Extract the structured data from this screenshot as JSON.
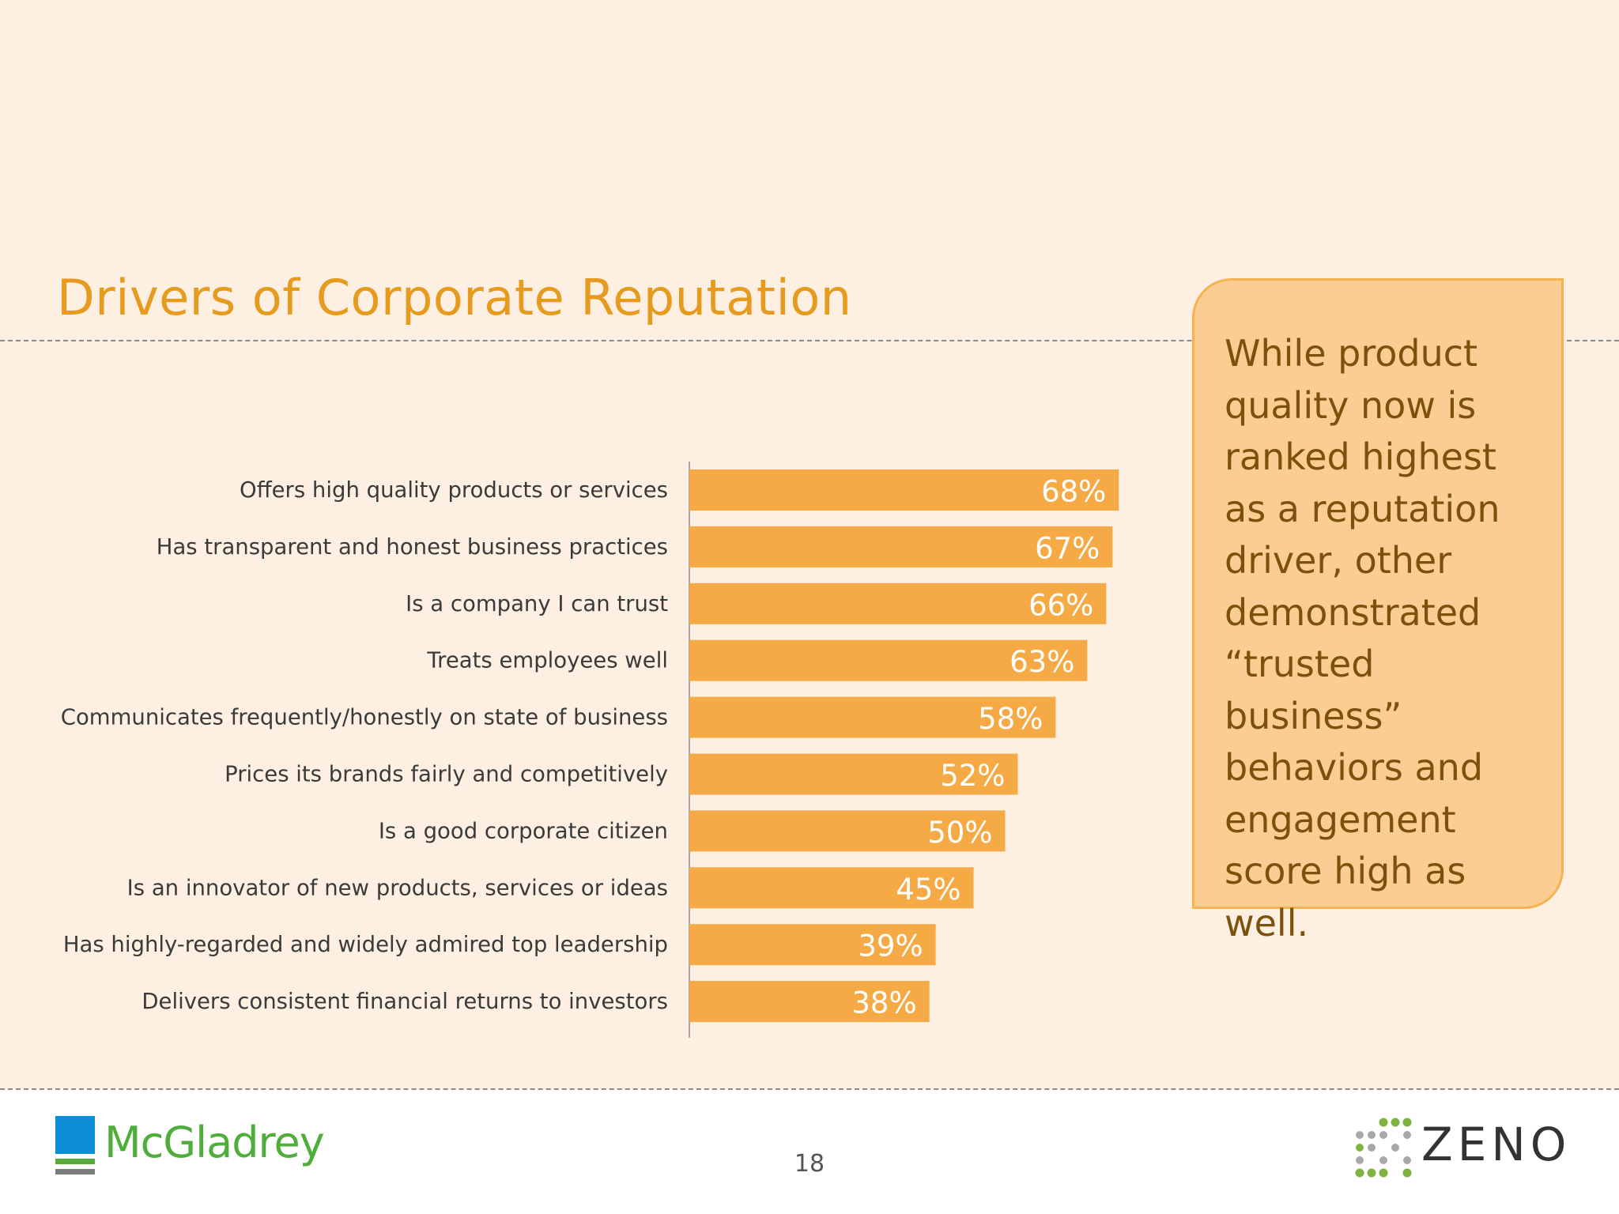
{
  "slide": {
    "title": "Drivers of Corporate Reputation",
    "page_number": "18",
    "callout_text": "While product quality now is ranked highest as a reputation driver, other demonstrated “trusted business” behaviors and engagement score high as well.",
    "colors": {
      "title": "#e69a1e",
      "bar": "#f5aa45",
      "callout_fill": "#fbcd93",
      "callout_border": "#f5b253",
      "callout_text": "#7a520b"
    }
  },
  "logos": {
    "left": {
      "text": "McGladrey",
      "icon": "mcgladrey-logo-icon"
    },
    "right": {
      "text": "ZENO",
      "icon": "zeno-dots-icon"
    }
  },
  "chart_data": {
    "type": "bar",
    "orientation": "horizontal",
    "categories": [
      "Offers high quality products or services",
      "Has transparent and honest business practices",
      "Is a company I can trust",
      "Treats employees well",
      "Communicates frequently/honestly on state of business",
      "Prices its brands fairly and competitively",
      "Is a good corporate citizen",
      "Is an innovator of new products, services or ideas",
      "Has highly-regarded and widely admired top leadership",
      "Delivers consistent financial returns to investors"
    ],
    "values": [
      68,
      67,
      66,
      63,
      58,
      52,
      50,
      45,
      39,
      38
    ],
    "value_labels": [
      "68%",
      "67%",
      "66%",
      "63%",
      "58%",
      "52%",
      "50%",
      "45%",
      "39%",
      "38%"
    ],
    "unit": "%",
    "xlim": [
      0,
      100
    ],
    "grid": false,
    "legend": "none"
  }
}
